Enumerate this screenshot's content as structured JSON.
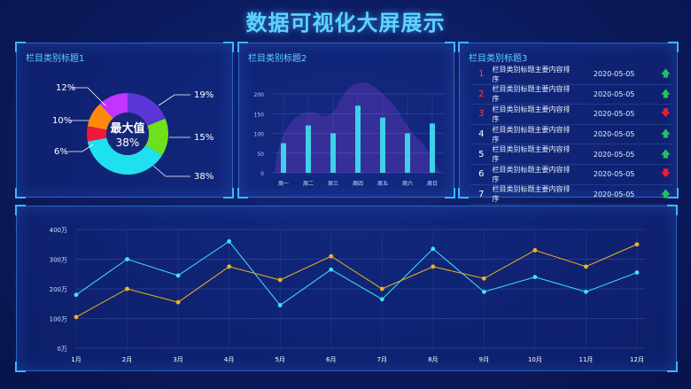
{
  "page_title": "数据可视化大屏展示",
  "panel1": {
    "title": "栏目类别标题1",
    "center_label": "最大值",
    "center_value": "38%",
    "labels": [
      "12%",
      "19%",
      "10%",
      "15%",
      "6%",
      "38%"
    ],
    "colors": {
      "blue_purple": "#5b36d6",
      "green": "#6fe11c",
      "cyan": "#1fe0f0",
      "red": "#f0193a",
      "orange": "#ff8a0a",
      "purple": "#c035ff"
    }
  },
  "panel2": {
    "title": "栏目类别标题2",
    "chart_data": {
      "type": "bar",
      "categories": [
        "周一",
        "周二",
        "周三",
        "周四",
        "周五",
        "周六",
        "周日"
      ],
      "values": [
        75,
        120,
        100,
        170,
        140,
        100,
        125
      ],
      "yticks": [
        "0",
        "50",
        "100",
        "150",
        "200"
      ],
      "ylim": [
        0,
        200
      ]
    }
  },
  "panel3": {
    "title": "栏目类别标题3",
    "rows": [
      {
        "num": "1",
        "text": "栏目类别标题主要内容排序",
        "date": "2020-05-05",
        "trend": "up"
      },
      {
        "num": "2",
        "text": "栏目类别标题主要内容排序",
        "date": "2020-05-05",
        "trend": "up"
      },
      {
        "num": "3",
        "text": "栏目类别标题主要内容排序",
        "date": "2020-05-05",
        "trend": "down"
      },
      {
        "num": "4",
        "text": "栏目类别标题主要内容排序",
        "date": "2020-05-05",
        "trend": "up"
      },
      {
        "num": "5",
        "text": "栏目类别标题主要内容排序",
        "date": "2020-05-05",
        "trend": "up"
      },
      {
        "num": "6",
        "text": "栏目类别标题主要内容排序",
        "date": "2020-05-05",
        "trend": "down"
      },
      {
        "num": "7",
        "text": "栏目类别标题主要内容排序",
        "date": "2020-05-05",
        "trend": "up"
      }
    ],
    "num_colors": [
      "#ff3b3b",
      "#ff3b3b",
      "#ff3b3b",
      "#ffffff",
      "#ffffff",
      "#ffffff",
      "#ffffff"
    ]
  },
  "panel4": {
    "chart_data": {
      "type": "line",
      "categories": [
        "1月",
        "2月",
        "3月",
        "4月",
        "5月",
        "6月",
        "7月",
        "8月",
        "9月",
        "10月",
        "11月",
        "12月"
      ],
      "yticks": [
        "0万",
        "100万",
        "200万",
        "300万",
        "400万"
      ],
      "ylim": [
        0,
        400
      ],
      "series": [
        {
          "values": [
            180,
            300,
            245,
            360,
            145,
            265,
            165,
            335,
            190,
            240,
            190,
            255
          ],
          "color": "#3fe3ff"
        },
        {
          "values": [
            105,
            200,
            155,
            275,
            230,
            310,
            200,
            275,
            235,
            330,
            275,
            350
          ],
          "color": "#f0b21e"
        }
      ]
    }
  }
}
